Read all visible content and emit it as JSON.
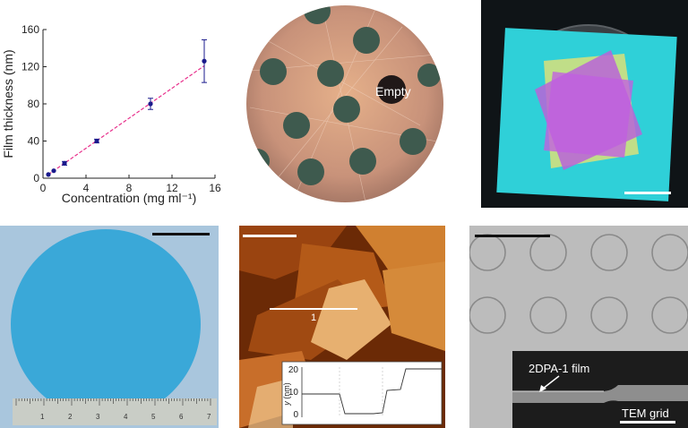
{
  "chart_data": {
    "type": "scatter",
    "xlabel": "Concentration (mg ml⁻¹)",
    "ylabel": "Film thickness (nm)",
    "xlim": [
      0,
      16
    ],
    "ylim": [
      0,
      160
    ],
    "x_ticks": [
      "0",
      "4",
      "8",
      "12",
      "16"
    ],
    "y_ticks": [
      "0",
      "40",
      "80",
      "120",
      "160"
    ],
    "x": [
      0.5,
      1,
      2,
      5,
      10,
      15
    ],
    "y": [
      4,
      8,
      16,
      40,
      80,
      126
    ],
    "y_err": [
      1,
      1,
      2,
      2,
      6,
      23
    ],
    "fit": {
      "x": [
        0.5,
        15
      ],
      "y": [
        4,
        121
      ]
    },
    "point_color": "#1a1a8c",
    "fit_color": "#e8308c"
  },
  "panels": {
    "optical_grid": {
      "annotation": "Empty"
    },
    "afm": {
      "line_label": "1",
      "profile_ylabel_var": "y",
      "profile_ylabel_unit": " (nm)",
      "profile_y_ticks": [
        "20",
        "10",
        "0"
      ]
    },
    "sem": {
      "film_label": "2DPA-1 film",
      "grid_label": "TEM grid"
    },
    "wafer": {
      "ruler_numbers": [
        "1",
        "2",
        "3",
        "4",
        "5",
        "6",
        "7"
      ]
    }
  }
}
